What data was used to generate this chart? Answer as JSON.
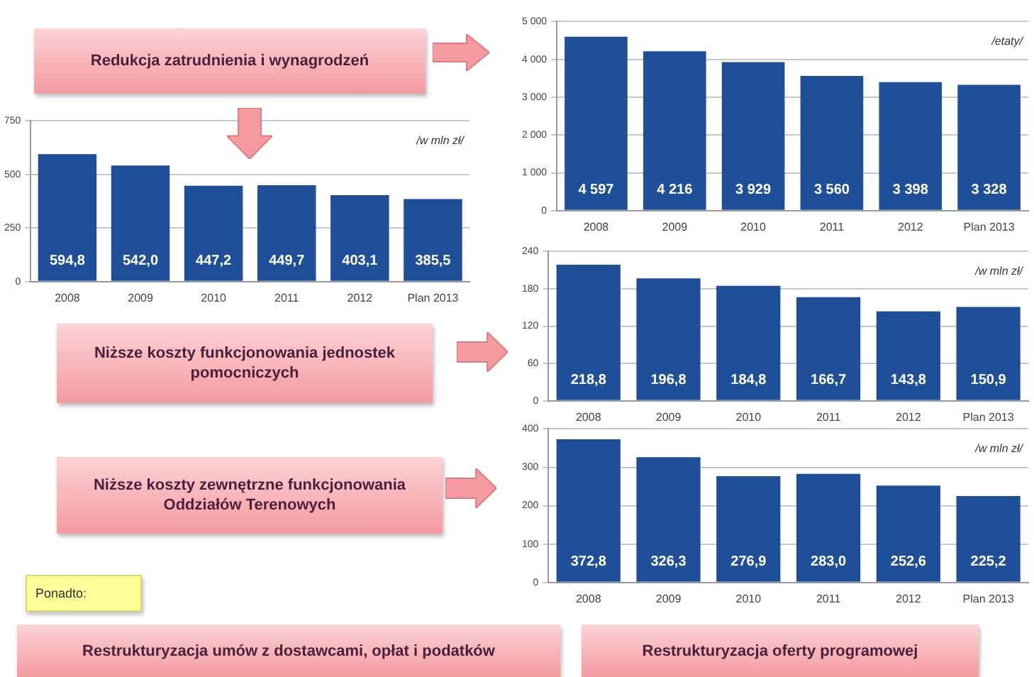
{
  "chart_data": [
    {
      "type": "other",
      "annotations": [
        "Redukcja zatrudnienia i wynagrodzeń",
        "Niższe koszty funkcjonowania jednostek pomocniczych",
        "Niższe koszty zewnętrzne funkcjonowania Oddziałów Terenowych",
        "Ponadto:",
        "Restrukturyzacja umów z dostawcami, opłat i podatków",
        "Restrukturyzacja oferty programowej"
      ]
    },
    {
      "type": "bar",
      "categories": [
        "2008",
        "2009",
        "2010",
        "2011",
        "2012",
        "Plan 2013"
      ],
      "values": [
        4597,
        4216,
        3929,
        3560,
        3398,
        3328
      ],
      "value_labels": [
        "4 597",
        "4 216",
        "3 929",
        "3 560",
        "3 398",
        "3 328"
      ],
      "color": "#1f4f99",
      "ylim": [
        0,
        5000
      ],
      "yticks": [
        0,
        {
          "value": 1000,
          "label": "1 000"
        },
        {
          "value": 2000,
          "label": "2 000"
        },
        {
          "value": 3000,
          "label": "3 000"
        },
        {
          "value": 4000,
          "label": "4 000"
        },
        {
          "value": 5000,
          "label": "5 000"
        }
      ],
      "grid": "y",
      "legend": false,
      "annotations": [
        "/etaty/"
      ]
    },
    {
      "type": "bar",
      "categories": [
        "2008",
        "2009",
        "2010",
        "2011",
        "2012",
        "Plan 2013"
      ],
      "values": [
        594.8,
        542.0,
        447.2,
        449.7,
        403.1,
        385.5
      ],
      "value_labels": [
        "594,8",
        "542,0",
        "447,2",
        "449,7",
        "403,1",
        "385,5"
      ],
      "color": "#1f4f99",
      "ylim": [
        0,
        750
      ],
      "yticks": [
        0,
        250,
        500,
        750
      ],
      "grid": "y",
      "legend": false,
      "annotations": [
        "/w mln zł/"
      ]
    },
    {
      "type": "bar",
      "categories": [
        "2008",
        "2009",
        "2010",
        "2011",
        "2012",
        "Plan 2013"
      ],
      "values": [
        218.8,
        196.8,
        184.8,
        166.7,
        143.8,
        150.9
      ],
      "value_labels": [
        "218,8",
        "196,8",
        "184,8",
        "166,7",
        "143,8",
        "150,9"
      ],
      "color": "#1f4f99",
      "ylim": [
        0,
        240
      ],
      "yticks": [
        0,
        60,
        120,
        180,
        240
      ],
      "grid": "y",
      "legend": false,
      "annotations": [
        "/w mln zł/"
      ]
    },
    {
      "type": "bar",
      "categories": [
        "2008",
        "2009",
        "2010",
        "2011",
        "2012",
        "Plan 2013"
      ],
      "values": [
        372.8,
        326.3,
        276.9,
        283.0,
        252.6,
        225.2
      ],
      "value_labels": [
        "372,8",
        "326,3",
        "276,9",
        "283,0",
        "252,6",
        "225,2"
      ],
      "color": "#1f4f99",
      "ylim": [
        0,
        400
      ],
      "yticks": [
        0,
        100,
        200,
        300,
        400
      ],
      "grid": "y",
      "legend": false,
      "annotations": [
        "/w mln zł/"
      ]
    }
  ]
}
